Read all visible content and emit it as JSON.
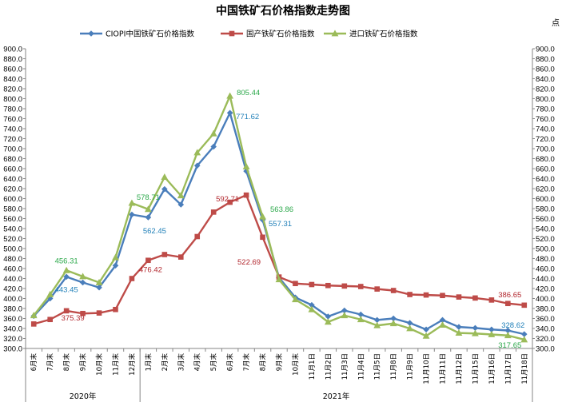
{
  "chart_data": {
    "type": "line",
    "title": "中国铁矿石价格指数走势图",
    "unit_label": "点",
    "categories": [
      "6月末",
      "7月末",
      "8月末",
      "9月末",
      "10月末",
      "11月末",
      "12月末",
      "1月末",
      "2月末",
      "3月末",
      "4月末",
      "5月末",
      "6月末",
      "7月末",
      "8月末",
      "9月末",
      "10月末",
      "11月1日",
      "11月2日",
      "11月3日",
      "11月4日",
      "11月5日",
      "11月8日",
      "11月9日",
      "11月10日",
      "11月11日",
      "11月12日",
      "11月15日",
      "11月16日",
      "11月17日",
      "11月18日"
    ],
    "groups": [
      {
        "label": "2020年",
        "start": 0,
        "end": 6
      },
      {
        "label": "2021年",
        "start": 7,
        "end": 30
      }
    ],
    "ylim": [
      300,
      900
    ],
    "ytick_step": 20,
    "yticks_format": "0.0",
    "grid": false,
    "legend_position": "top",
    "series": [
      {
        "name": "CIOPI中国铁矿石价格指数",
        "color": "#4A7EBB",
        "marker": "diamond",
        "values": [
          365,
          400,
          443.45,
          432,
          422,
          466,
          568,
          562.45,
          619,
          588,
          666,
          704,
          771.62,
          655,
          557.31,
          442,
          402,
          387,
          364,
          376,
          368,
          357,
          360,
          351,
          338,
          357,
          343,
          341,
          338,
          336,
          328.62
        ]
      },
      {
        "name": "国产铁矿石价格指数",
        "color": "#BE4B48",
        "marker": "square",
        "values": [
          349,
          358,
          375.39,
          370,
          371,
          378,
          440,
          476.42,
          488,
          483,
          524,
          573,
          592.71,
          607,
          522.69,
          443,
          430,
          428,
          426,
          425,
          424,
          419,
          416,
          408,
          407,
          406,
          403,
          401,
          397,
          390,
          386.65
        ]
      },
      {
        "name": "进口铁矿石价格指数",
        "color": "#9BBB59",
        "marker": "triangle",
        "values": [
          366,
          408,
          456.31,
          444,
          432,
          482,
          591,
          578.71,
          643,
          606,
          692,
          730,
          805.44,
          664,
          563.86,
          438,
          398,
          378,
          353,
          366,
          358,
          346,
          350,
          340,
          325,
          347,
          331,
          330,
          328,
          326,
          317.65
        ]
      }
    ],
    "data_labels": [
      {
        "series": 2,
        "index": 2,
        "text": "456.31"
      },
      {
        "series": 0,
        "index": 2,
        "text": "443.45"
      },
      {
        "series": 1,
        "index": 2,
        "text": "375.39"
      },
      {
        "series": 2,
        "index": 7,
        "text": "578.71"
      },
      {
        "series": 0,
        "index": 7,
        "text": "562.45"
      },
      {
        "series": 1,
        "index": 7,
        "text": "476.42"
      },
      {
        "series": 2,
        "index": 12,
        "text": "805.44"
      },
      {
        "series": 0,
        "index": 12,
        "text": "771.62"
      },
      {
        "series": 1,
        "index": 12,
        "text": "592.71"
      },
      {
        "series": 1,
        "index": 14,
        "text": "522.69"
      },
      {
        "series": 2,
        "index": 14,
        "text": "563.86"
      },
      {
        "series": 0,
        "index": 14,
        "text": "557.31"
      },
      {
        "series": 1,
        "index": 30,
        "text": "386.65"
      },
      {
        "series": 0,
        "index": 30,
        "text": "328.62"
      },
      {
        "series": 2,
        "index": 30,
        "text": "317.65"
      }
    ]
  }
}
